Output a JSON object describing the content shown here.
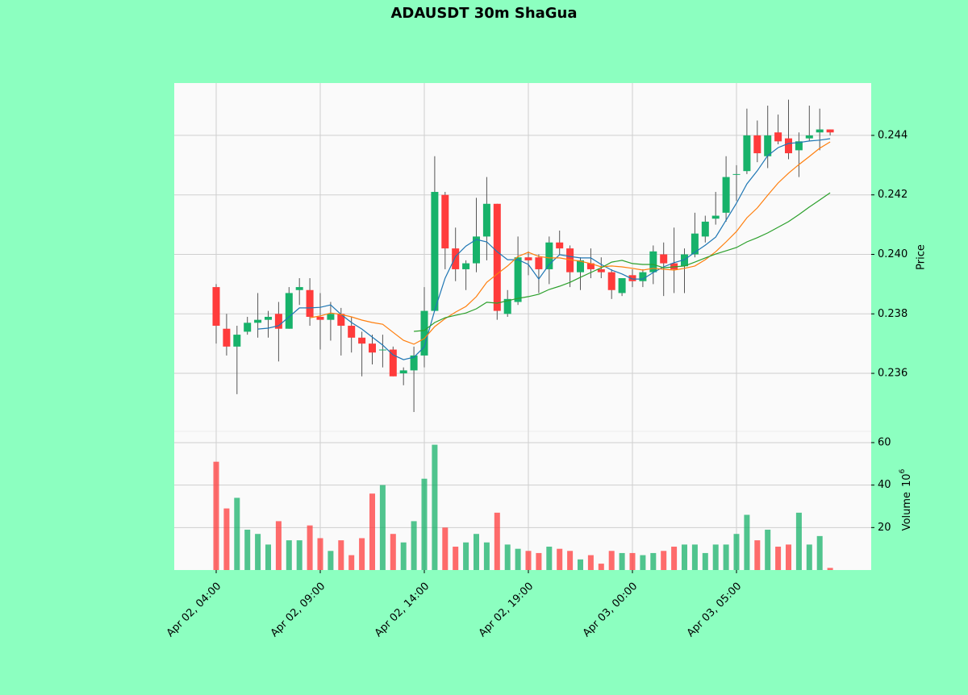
{
  "chart_data": {
    "type": "candlestick",
    "title": "ADAUSDT 30m ShaGua",
    "categories": [
      "Apr 02, 04:00",
      null,
      null,
      null,
      null,
      null,
      null,
      null,
      null,
      null,
      "Apr 02, 09:00",
      null,
      null,
      null,
      null,
      null,
      null,
      null,
      null,
      null,
      "Apr 02, 14:00",
      null,
      null,
      null,
      null,
      null,
      null,
      null,
      null,
      null,
      "Apr 02, 19:00",
      null,
      null,
      null,
      null,
      null,
      null,
      null,
      null,
      null,
      "Apr 03, 00:00",
      null,
      null,
      null,
      null,
      null,
      null,
      null,
      null,
      null,
      "Apr 03, 05:00",
      null,
      null,
      null,
      null,
      null,
      null,
      null,
      null,
      null
    ],
    "open": [
      0.2389,
      0.2375,
      0.2369,
      0.2374,
      0.2377,
      0.2378,
      0.238,
      0.2375,
      0.2388,
      0.2388,
      0.2379,
      0.2378,
      0.238,
      0.2376,
      0.2372,
      0.237,
      0.2368,
      0.2368,
      0.236,
      0.2361,
      0.2366,
      0.2381,
      0.242,
      0.2402,
      0.2395,
      0.2397,
      0.2406,
      0.2417,
      0.238,
      0.2384,
      0.2399,
      0.2399,
      0.2395,
      0.2404,
      0.2402,
      0.2394,
      0.2397,
      0.2395,
      0.2394,
      0.2387,
      0.2393,
      0.2391,
      0.2394,
      0.24,
      0.2397,
      0.2396,
      0.24,
      0.2406,
      0.2412,
      0.2414,
      0.2427,
      0.2428,
      0.244,
      0.2433,
      0.2441,
      0.2439,
      0.2435,
      0.2439,
      0.2441,
      0.2442
    ],
    "high": [
      0.239,
      0.238,
      0.2376,
      0.2379,
      0.2387,
      0.2381,
      0.2384,
      0.2389,
      0.2392,
      0.2392,
      0.2387,
      0.2384,
      0.2382,
      0.2379,
      0.2374,
      0.2373,
      0.2373,
      0.2369,
      0.2362,
      0.2369,
      0.2389,
      0.2433,
      0.2421,
      0.2409,
      0.2398,
      0.2419,
      0.2426,
      0.2417,
      0.2388,
      0.2406,
      0.2401,
      0.24,
      0.2406,
      0.2408,
      0.2403,
      0.2399,
      0.2402,
      0.2399,
      0.2395,
      0.2392,
      0.2395,
      0.2395,
      0.2403,
      0.2404,
      0.2409,
      0.2402,
      0.2414,
      0.2413,
      0.2421,
      0.2433,
      0.243,
      0.2449,
      0.2445,
      0.245,
      0.2447,
      0.2452,
      0.2441,
      0.245,
      0.2449,
      0.2442
    ],
    "low": [
      0.237,
      0.2366,
      0.2353,
      0.2373,
      0.2372,
      0.2372,
      0.2364,
      0.2375,
      0.2383,
      0.2376,
      0.2368,
      0.2371,
      0.2366,
      0.2367,
      0.2359,
      0.2363,
      0.2362,
      0.2359,
      0.2356,
      0.2347,
      0.2362,
      0.2381,
      0.2395,
      0.2391,
      0.2388,
      0.2394,
      0.2398,
      0.2378,
      0.2379,
      0.2383,
      0.2393,
      0.2387,
      0.239,
      0.24,
      0.2389,
      0.2388,
      0.2392,
      0.2392,
      0.2385,
      0.2386,
      0.2389,
      0.2389,
      0.239,
      0.2386,
      0.2387,
      0.2387,
      0.2399,
      0.2404,
      0.241,
      0.2411,
      0.2418,
      0.2427,
      0.2431,
      0.2429,
      0.2437,
      0.2432,
      0.2426,
      0.2438,
      0.2435,
      0.244
    ],
    "close": [
      0.2376,
      0.2369,
      0.2373,
      0.2377,
      0.2378,
      0.2379,
      0.2375,
      0.2387,
      0.2389,
      0.2379,
      0.2378,
      0.238,
      0.2376,
      0.2372,
      0.237,
      0.2367,
      0.2368,
      0.2359,
      0.2361,
      0.2366,
      0.2381,
      0.2421,
      0.2402,
      0.2395,
      0.2397,
      0.2406,
      0.2417,
      0.2381,
      0.2385,
      0.2399,
      0.2398,
      0.2395,
      0.2404,
      0.2402,
      0.2394,
      0.2398,
      0.2395,
      0.2394,
      0.2388,
      0.2392,
      0.2391,
      0.2394,
      0.2401,
      0.2397,
      0.2395,
      0.24,
      0.2407,
      0.2411,
      0.2413,
      0.2426,
      0.2427,
      0.244,
      0.2434,
      0.244,
      0.2438,
      0.2434,
      0.2438,
      0.244,
      0.2442,
      0.2441
    ],
    "volume": [
      51,
      29,
      34,
      19,
      17,
      12,
      23,
      14,
      14,
      21,
      15,
      9,
      14,
      7,
      15,
      36,
      40,
      17,
      13,
      23,
      43,
      59,
      20,
      11,
      13,
      17,
      13,
      27,
      12,
      10,
      9,
      8,
      11,
      10,
      9,
      5,
      7,
      3,
      9,
      8,
      8,
      7,
      8,
      9,
      11,
      12,
      12,
      8,
      12,
      12,
      17,
      26,
      14,
      19,
      11,
      12,
      27,
      12,
      16,
      1
    ],
    "moving_averages": [
      {
        "color": "#1f77b4",
        "values": [
          null,
          null,
          null,
          null,
          0.23749,
          0.23752,
          0.2376,
          0.2379,
          0.2382,
          0.2382,
          0.23822,
          0.2383,
          0.23798,
          0.23771,
          0.23749,
          0.23722,
          0.23695,
          0.23662,
          0.23646,
          0.23654,
          0.23689,
          0.23812,
          0.2392,
          0.23993,
          0.24028,
          0.2405,
          0.24042,
          0.24009,
          0.23982,
          0.23982,
          0.23966,
          0.23917,
          0.23966,
          0.23999,
          0.23993,
          0.23988,
          0.23988,
          0.23966,
          0.23947,
          0.23934,
          0.23917,
          0.23917,
          0.23939,
          0.23958,
          0.23972,
          0.23982,
          0.24007,
          0.24031,
          0.24058,
          0.24115,
          0.24172,
          0.24237,
          0.24281,
          0.24332,
          0.24359,
          0.24373,
          0.24376,
          0.24381,
          0.24384,
          0.24389
        ]
      },
      {
        "color": "#ff7f0e",
        "values": [
          null,
          null,
          null,
          null,
          null,
          null,
          null,
          null,
          null,
          0.23787,
          0.23793,
          0.23803,
          0.23798,
          0.2379,
          0.23779,
          0.23771,
          0.23765,
          0.23738,
          0.23711,
          0.23698,
          0.23717,
          0.23757,
          0.23784,
          0.23806,
          0.23825,
          0.23858,
          0.23906,
          0.23934,
          0.23961,
          0.23993,
          0.24007,
          0.23993,
          0.23988,
          0.23988,
          0.23982,
          0.23977,
          0.23969,
          0.23958,
          0.23961,
          0.23958,
          0.23953,
          0.23947,
          0.23953,
          0.2395,
          0.23947,
          0.23953,
          0.23961,
          0.23982,
          0.24009,
          0.24042,
          0.24077,
          0.24123,
          0.24156,
          0.24199,
          0.2424,
          0.24273,
          0.24302,
          0.24329,
          0.24357,
          0.24378
        ]
      },
      {
        "color": "#2ca02c",
        "values": [
          null,
          null,
          null,
          null,
          null,
          null,
          null,
          null,
          null,
          null,
          null,
          null,
          null,
          null,
          null,
          null,
          null,
          null,
          null,
          0.23741,
          0.23744,
          0.23771,
          0.23787,
          0.23795,
          0.23803,
          0.23817,
          0.23839,
          0.23836,
          0.23844,
          0.23852,
          0.23858,
          0.23866,
          0.23882,
          0.23893,
          0.23906,
          0.23923,
          0.23939,
          0.23955,
          0.23974,
          0.2398,
          0.23969,
          0.23966,
          0.23966,
          0.23955,
          0.23958,
          0.23961,
          0.23974,
          0.23988,
          0.24001,
          0.24012,
          0.24023,
          0.24042,
          0.24056,
          0.24072,
          0.24091,
          0.2411,
          0.24134,
          0.24159,
          0.24183,
          0.24207
        ]
      }
    ],
    "up_color": "#17b26a",
    "down_color": "#ff3b3b",
    "ylabel": "Price",
    "ylim": [
      0.23405,
      0.24576
    ],
    "yticks": [
      0.236,
      0.238,
      {
        "value": 0.24,
        "label": "0.240"
      },
      0.242,
      0.244
    ],
    "volume_label": "Volume",
    "volume_scale": "10",
    "volume_exponent": "6",
    "volume_ylim": [
      0,
      65.3
    ],
    "volume_yticks": [
      20,
      40,
      60
    ],
    "grid": true
  }
}
